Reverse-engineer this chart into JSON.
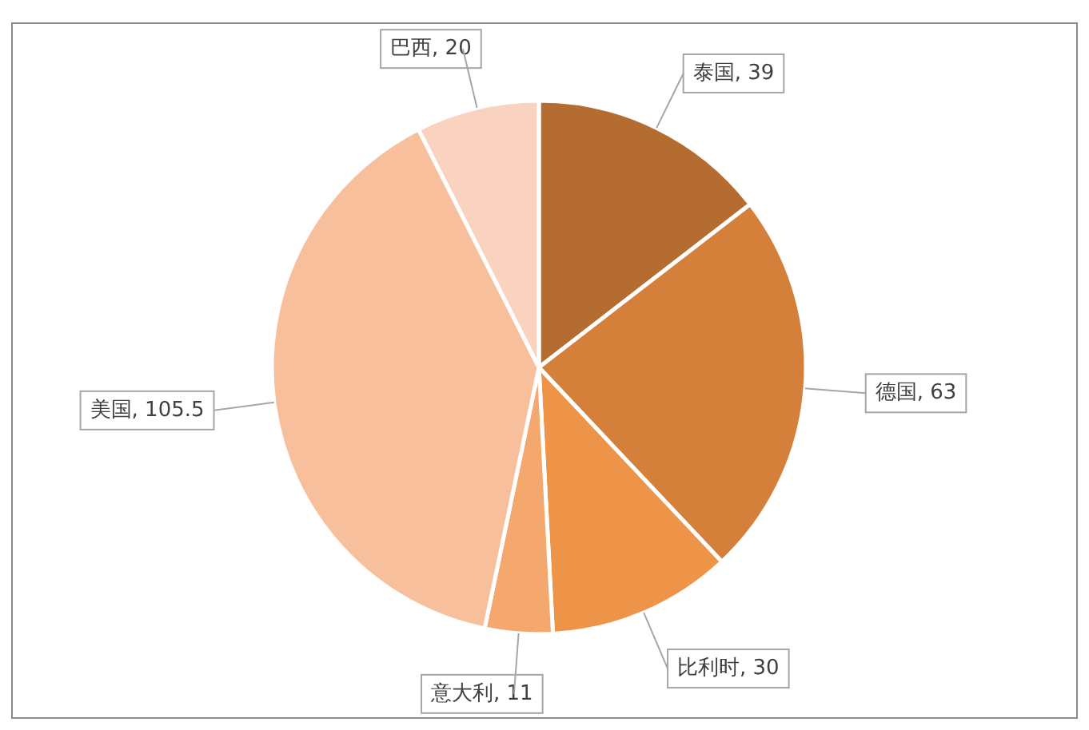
{
  "chart_data": {
    "type": "pie",
    "categories": [
      "泰国",
      "德国",
      "比利时",
      "意大利",
      "美国",
      "巴西"
    ],
    "values": [
      39,
      63,
      30,
      11,
      105.5,
      20
    ],
    "value_labels": [
      ", 39",
      ", 63",
      ", 30",
      ", 11",
      ", 105.5",
      ", 20"
    ],
    "colors": [
      "#b46c30",
      "#d4803a",
      "#ed9448",
      "#f4a86e",
      "#f8bf9d",
      "#fad3c0"
    ],
    "legend": false
  }
}
